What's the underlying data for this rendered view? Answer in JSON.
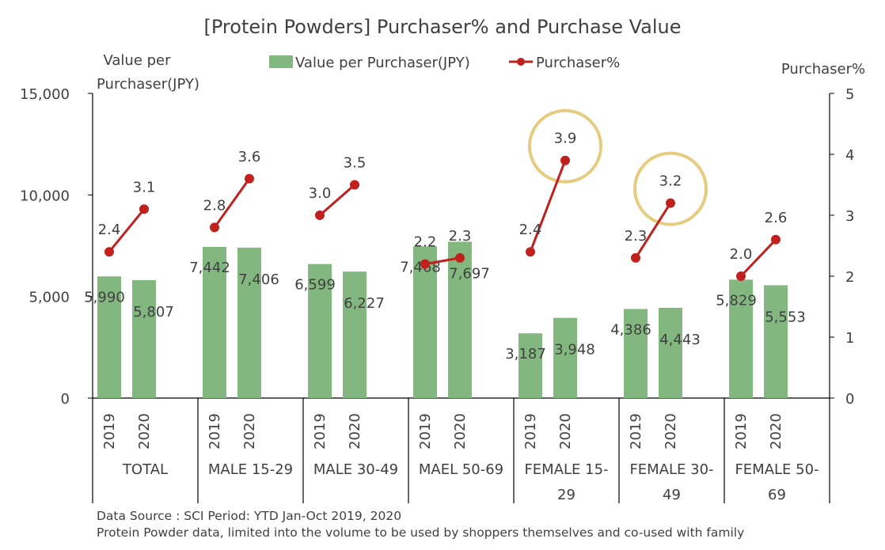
{
  "chart_data": {
    "type": "bar+line",
    "title": "[Protein Powders] Purchaser% and Purchase Value",
    "ylabel_left": "Value per Purchaser(JPY)",
    "ylabel_right": "Purchaser%",
    "ylim_left": [
      0,
      15000
    ],
    "ylim_right": [
      0,
      5
    ],
    "yticks_left": [
      "0",
      "5,000",
      "10,000",
      "15,000"
    ],
    "yticks_right": [
      "0",
      "1",
      "2",
      "3",
      "4",
      "5"
    ],
    "legend_position": "top",
    "grid": false,
    "groups": [
      "TOTAL",
      "MALE 15-29",
      "MALE 30-49",
      "MAEL 50-69",
      "FEMALE 15-29",
      "FEMALE 30-49",
      "FEMALE 50-69"
    ],
    "years": [
      "2019",
      "2020"
    ],
    "series": [
      {
        "name": "Value per Purchaser(JPY)",
        "type": "bar",
        "color": "#82b77f",
        "values": [
          [
            5990,
            5807
          ],
          [
            7442,
            7406
          ],
          [
            6599,
            6227
          ],
          [
            7468,
            7697
          ],
          [
            3187,
            3948
          ],
          [
            4386,
            4443
          ],
          [
            5829,
            5553
          ]
        ],
        "labels": [
          [
            "5,990",
            "5,807"
          ],
          [
            "7,442",
            "7,406"
          ],
          [
            "6,599",
            "6,227"
          ],
          [
            "7,468",
            "7,697"
          ],
          [
            "3,187",
            "3,948"
          ],
          [
            "4,386",
            "4,443"
          ],
          [
            "5,829",
            "5,553"
          ]
        ]
      },
      {
        "name": "Purchaser%",
        "type": "line",
        "color": "#c0201e",
        "values": [
          [
            2.4,
            3.1
          ],
          [
            2.8,
            3.6
          ],
          [
            3.0,
            3.5
          ],
          [
            2.2,
            2.3
          ],
          [
            2.4,
            3.9
          ],
          [
            2.3,
            3.2
          ],
          [
            2.0,
            2.6
          ]
        ],
        "labels": [
          [
            "2.4",
            "3.1"
          ],
          [
            "2.8",
            "3.6"
          ],
          [
            "3.0",
            "3.5"
          ],
          [
            "2.2",
            "2.3"
          ],
          [
            "2.4",
            "3.9"
          ],
          [
            "2.3",
            "3.2"
          ],
          [
            "2.0",
            "2.6"
          ]
        ]
      }
    ],
    "highlighted_points": [
      {
        "group": "FEMALE 15-29",
        "year": "2020"
      },
      {
        "group": "FEMALE 30-49",
        "year": "2020"
      }
    ],
    "highlight_color": "#e6cc80"
  },
  "footer": {
    "line1": "Data Source : SCI  Period: YTD Jan-Oct 2019, 2020",
    "line2": "Protein Powder data, limited into the volume to be used by shoppers themselves and co-used with family"
  },
  "axis_titles": {
    "left_line1": "Value per",
    "left_line2": "Purchaser(JPY)"
  }
}
